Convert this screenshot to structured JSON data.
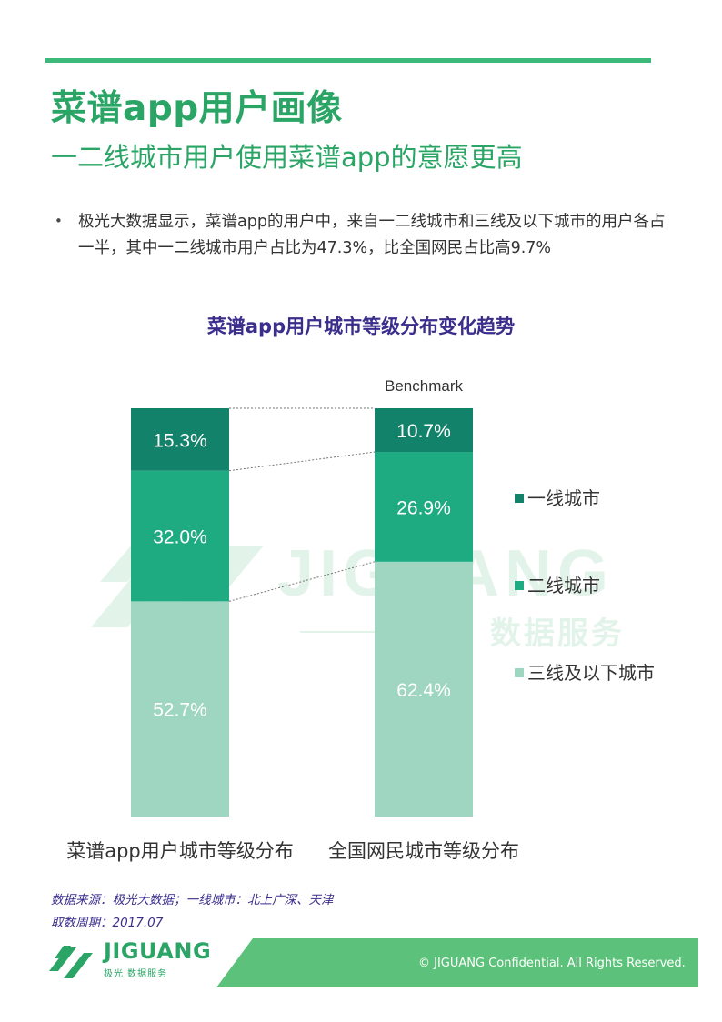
{
  "header": {
    "title": "菜谱app用户画像",
    "subtitle": "一二线城市用户使用菜谱app的意愿更高"
  },
  "body": {
    "bullet": "•",
    "text": "极光大数据显示，菜谱app的用户中，来自一二线城市和三线及以下城市的用户各占一半，其中一二线城市用户占比为47.3%，比全国网民占比高9.7%"
  },
  "chart_data": {
    "type": "bar",
    "stacked": true,
    "title": "菜谱app用户城市等级分布变化趋势",
    "categories": [
      "菜谱app用户城市等级分布",
      "全国网民城市等级分布"
    ],
    "bar_annotations": [
      "",
      "Benchmark"
    ],
    "series": [
      {
        "name": "三线及以下城市",
        "values": [
          52.7,
          62.4
        ],
        "labels": [
          "52.7%",
          "62.4%"
        ],
        "color": "#9fd6c1"
      },
      {
        "name": "二线城市",
        "values": [
          32.0,
          26.9
        ],
        "labels": [
          "32.0%",
          "26.9%"
        ],
        "color": "#1eab82"
      },
      {
        "name": "一线城市",
        "values": [
          15.3,
          10.7
        ],
        "labels": [
          "15.3%",
          "10.7%"
        ],
        "color": "#12826a"
      }
    ],
    "ylim": [
      0,
      100
    ],
    "legend_position": "right",
    "legend": [
      "一线城市",
      "二线城市",
      "三线及以下城市"
    ],
    "connector_lines": true
  },
  "watermark": {
    "brand": "JIGUANG",
    "tagline": "极光 数据服务"
  },
  "footer": {
    "source_line": "数据来源：极光大数据；一线城市：北上广深、天津",
    "period_line": "取数周期：2017.07",
    "copyright": "© JIGUANG Confidential. All Rights Reserved.",
    "logo_text": "JIGUANG",
    "logo_sub": "极光 数据服务"
  },
  "colors": {
    "accent": "#2aa566",
    "title_purple": "#3a2d8c",
    "footer_band": "#5cc17a"
  }
}
